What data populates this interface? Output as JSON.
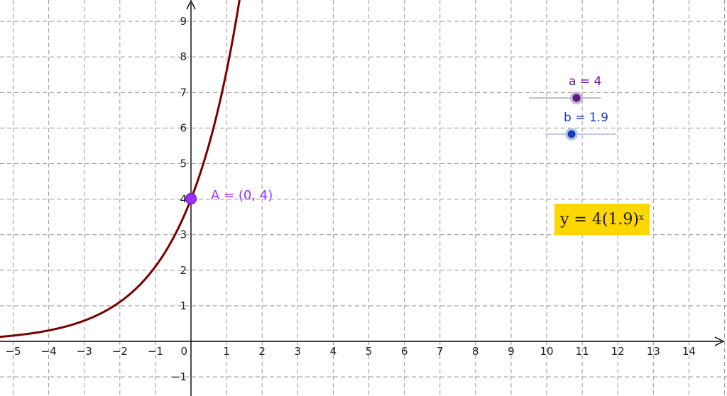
{
  "graph": {
    "x_ticks": [
      "−5",
      "−4",
      "−3",
      "−2",
      "−1",
      "0",
      "1",
      "2",
      "3",
      "4",
      "5",
      "6",
      "7",
      "8",
      "9",
      "10",
      "11",
      "12",
      "13",
      "14"
    ],
    "y_ticks": [
      "−1",
      "1",
      "2",
      "3",
      "4",
      "5",
      "6",
      "7",
      "8",
      "9"
    ],
    "axis_color": "#000000",
    "grid_color": "#a0a0a0",
    "function": {
      "a": 4,
      "b": 1.9,
      "color": "#7a0000"
    }
  },
  "point_A": {
    "label": "A = (0, 4)",
    "x": 0,
    "y": 4,
    "color": "#9b30ff"
  },
  "slider_a": {
    "label": "a = 4",
    "value": 4,
    "color": "#5a1a7a"
  },
  "slider_b": {
    "label": "b = 1.9",
    "value": 1.9,
    "color": "#1a3fb8"
  },
  "formula": {
    "prefix": "y = 4(1.9)",
    "exponent": "x",
    "background": "#ffd700"
  }
}
